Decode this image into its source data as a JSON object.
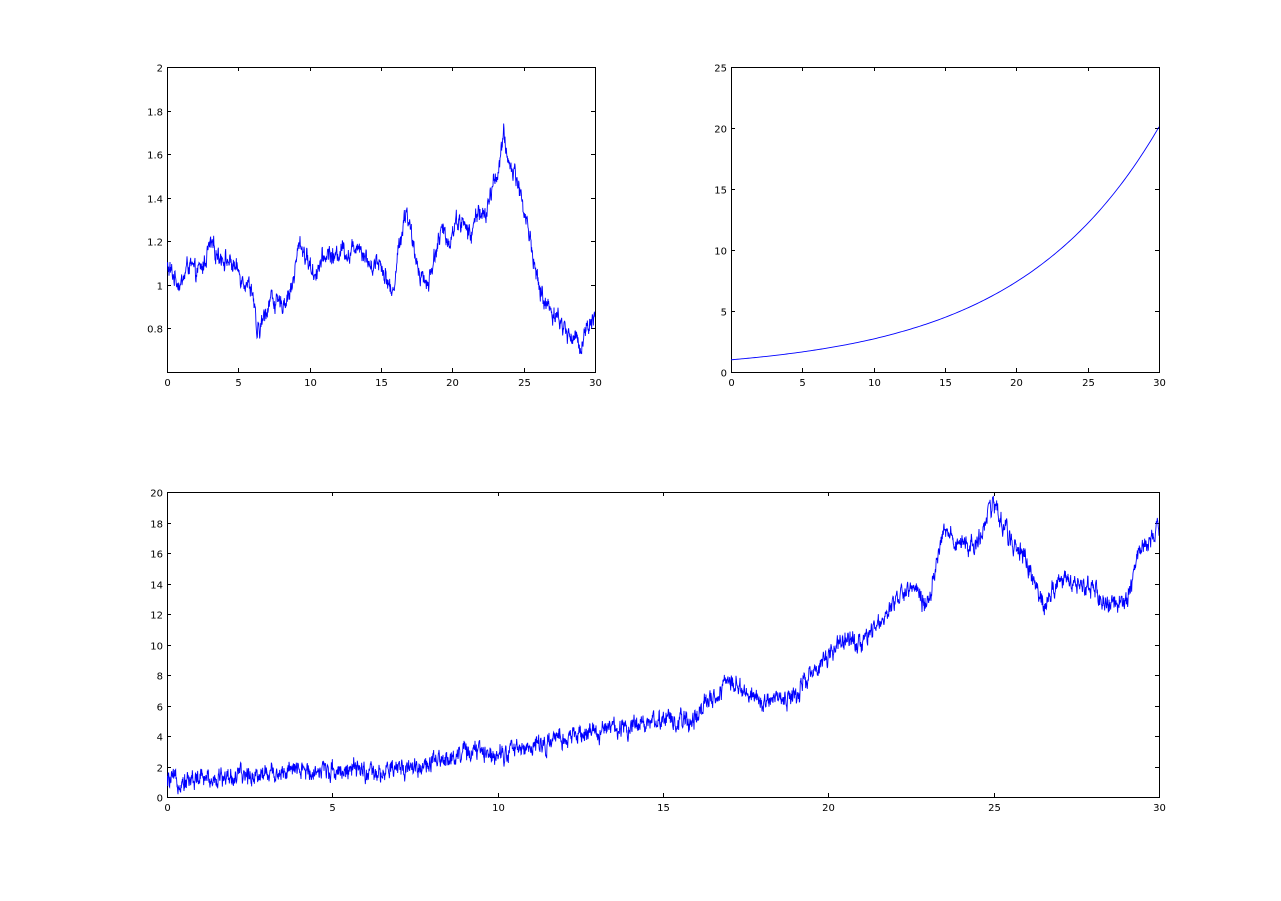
{
  "colors": {
    "line": "#0000ff",
    "axes": "#000000",
    "background": "#ffffff"
  },
  "chart_data": [
    {
      "id": "ratio",
      "type": "line",
      "title": "",
      "xlabel": "",
      "ylabel": "",
      "xlim": [
        0,
        30
      ],
      "ylim": [
        0.6,
        2
      ],
      "xticks": [
        0,
        5,
        10,
        15,
        20,
        25,
        30
      ],
      "yticks": [
        0.8,
        1,
        1.2,
        1.4,
        1.6,
        1.8,
        2
      ],
      "ytick_labels": [
        "0.8",
        "1",
        "1.2",
        "1.4",
        "1.6",
        "1.8",
        "2"
      ],
      "grid": false,
      "series": [
        {
          "noisy": true,
          "x": [
            0,
            0.5,
            1,
            1.5,
            2,
            2.5,
            3,
            3.5,
            4,
            4.5,
            5,
            5.5,
            6,
            6.3,
            6.8,
            7.3,
            7.8,
            8.3,
            8.8,
            9.3,
            9.8,
            10.3,
            10.8,
            11.3,
            11.8,
            12.3,
            12.8,
            13.3,
            13.8,
            14.3,
            14.8,
            15.3,
            15.8,
            16.3,
            16.8,
            17.3,
            17.8,
            18.3,
            18.8,
            19.3,
            19.8,
            20.3,
            20.8,
            21.3,
            21.8,
            22.3,
            22.8,
            23.3,
            23.6,
            24,
            24.5,
            25,
            25.5,
            26,
            26.5,
            27,
            27.5,
            28,
            28.5,
            29,
            29.5,
            30
          ],
          "y": [
            1.08,
            1.04,
            1.0,
            1.1,
            1.05,
            1.08,
            1.18,
            1.15,
            1.12,
            1.1,
            1.06,
            1.02,
            0.98,
            0.76,
            0.85,
            0.95,
            0.9,
            0.93,
            1.0,
            1.2,
            1.12,
            1.05,
            1.1,
            1.15,
            1.12,
            1.18,
            1.13,
            1.2,
            1.15,
            1.08,
            1.12,
            1.05,
            0.95,
            1.2,
            1.35,
            1.15,
            1.05,
            1.0,
            1.15,
            1.25,
            1.2,
            1.3,
            1.28,
            1.22,
            1.35,
            1.3,
            1.45,
            1.55,
            1.68,
            1.55,
            1.5,
            1.35,
            1.2,
            1.0,
            0.92,
            0.88,
            0.84,
            0.78,
            0.76,
            0.72,
            0.82,
            0.86
          ]
        }
      ]
    },
    {
      "id": "deterministic",
      "type": "line",
      "title": "",
      "xlabel": "",
      "ylabel": "",
      "xlim": [
        0,
        30
      ],
      "ylim": [
        0,
        25
      ],
      "xticks": [
        0,
        5,
        10,
        15,
        20,
        25,
        30
      ],
      "yticks": [
        0,
        5,
        10,
        15,
        20,
        25
      ],
      "ytick_labels": [
        "0",
        "5",
        "10",
        "15",
        "20",
        "25"
      ],
      "grid": false,
      "series": [
        {
          "noisy": false,
          "x": [
            0,
            2,
            4,
            6,
            8,
            10,
            12,
            14,
            16,
            18,
            20,
            22,
            24,
            26,
            28,
            30
          ],
          "y": [
            1.0,
            1.22,
            1.49,
            1.82,
            2.22,
            2.71,
            3.32,
            4.05,
            4.95,
            6.05,
            7.39,
            9.03,
            11.02,
            13.46,
            16.44,
            20.09
          ]
        }
      ]
    },
    {
      "id": "stochastic",
      "type": "line",
      "title": "",
      "xlabel": "",
      "ylabel": "",
      "xlim": [
        0,
        30
      ],
      "ylim": [
        0,
        20
      ],
      "xticks": [
        0,
        5,
        10,
        15,
        20,
        25,
        30
      ],
      "yticks": [
        0,
        2,
        4,
        6,
        8,
        10,
        12,
        14,
        16,
        18,
        20
      ],
      "ytick_labels": [
        "0",
        "2",
        "4",
        "6",
        "8",
        "10",
        "12",
        "14",
        "16",
        "18",
        "20"
      ],
      "grid": false,
      "series": [
        {
          "noisy": true,
          "x": [
            0,
            1,
            2,
            3,
            4,
            5,
            6,
            6.3,
            7,
            8,
            9,
            10,
            11,
            12,
            13,
            14,
            15,
            15.5,
            16,
            16.5,
            17,
            17.5,
            18,
            18.5,
            19,
            19.5,
            20,
            20.5,
            21,
            21.5,
            22,
            22.5,
            23,
            23.5,
            24,
            24.5,
            25,
            25.5,
            26,
            26.5,
            27,
            27.5,
            28,
            28.5,
            29,
            29.5,
            30
          ],
          "y": [
            1.0,
            1.2,
            1.3,
            1.6,
            1.7,
            1.8,
            1.7,
            1.3,
            1.9,
            2.1,
            3.0,
            2.9,
            3.3,
            3.8,
            4.3,
            4.7,
            5.1,
            4.8,
            5.2,
            6.5,
            7.6,
            7.0,
            6.2,
            6.5,
            6.6,
            8.2,
            9.2,
            10.3,
            10.0,
            11.5,
            12.8,
            14.0,
            12.5,
            17.5,
            16.5,
            16.5,
            19.3,
            17.0,
            15.5,
            12.5,
            14.3,
            14.0,
            13.5,
            12.5,
            12.8,
            16.5,
            17.3
          ]
        }
      ]
    }
  ]
}
